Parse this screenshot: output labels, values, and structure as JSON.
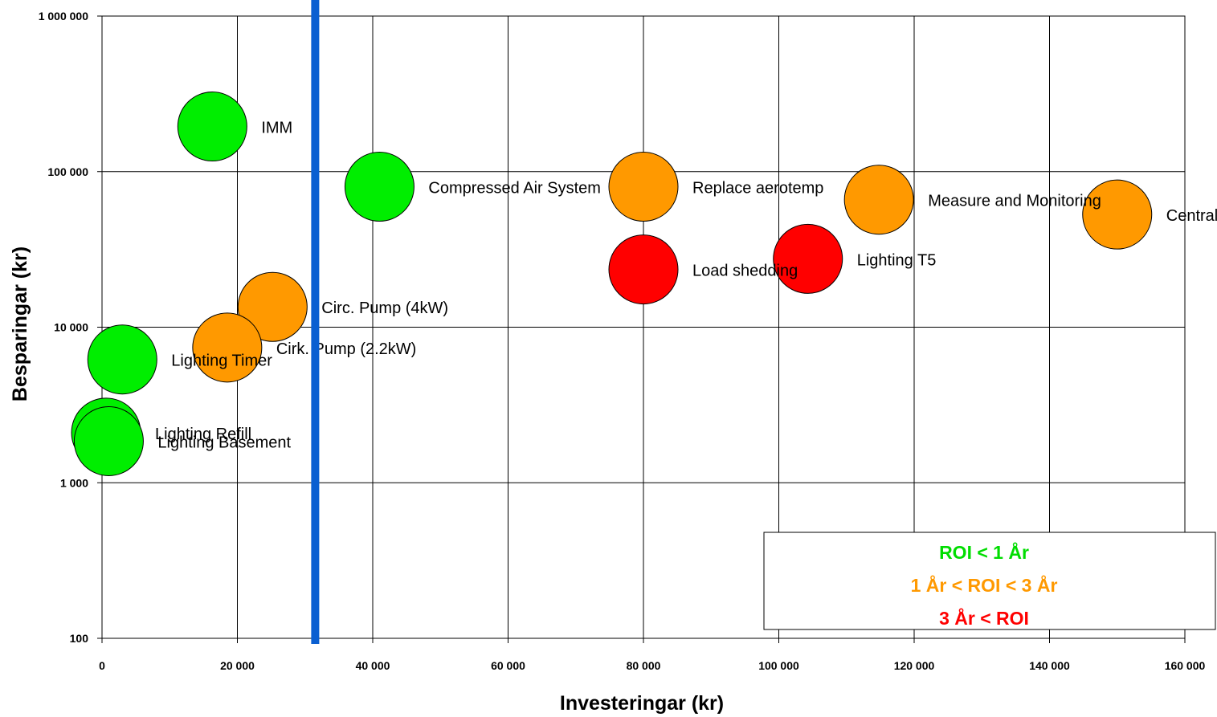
{
  "chart_data": {
    "type": "scatter",
    "subtype": "bubble",
    "xlabel": "Investeringar (kr)",
    "ylabel": "Besparingar (kr)",
    "xlim": [
      0,
      160000
    ],
    "ylim": [
      100,
      1000000
    ],
    "y_scale": "log",
    "grid": true,
    "x_ticks": [
      "0",
      "20 000",
      "40 000",
      "60 000",
      "80 000",
      "100 000",
      "120 000",
      "140 000",
      "160 000"
    ],
    "y_ticks": [
      "100",
      "1 000",
      "10 000",
      "100 000",
      "1 000 000"
    ],
    "reference_line": {
      "axis": "x",
      "value": 31500,
      "color": "#0a5fd1"
    },
    "colors": {
      "green": "#00ee00",
      "orange": "#ff9900",
      "red": "#ff0000"
    },
    "points": [
      {
        "label": "IMM",
        "x": 16300,
        "y": 195000,
        "category": "green"
      },
      {
        "label": "Compressed Air System",
        "x": 41000,
        "y": 80000,
        "category": "green"
      },
      {
        "label": "Replace aerotemp",
        "x": 80000,
        "y": 80000,
        "category": "orange"
      },
      {
        "label": "Measure and Monitoring",
        "x": 114800,
        "y": 66000,
        "category": "orange"
      },
      {
        "label": "Central heating",
        "x": 150000,
        "y": 53000,
        "category": "orange"
      },
      {
        "label": "Load shedding",
        "x": 80000,
        "y": 23500,
        "category": "red"
      },
      {
        "label": "Lighting T5",
        "x": 104300,
        "y": 27500,
        "category": "red"
      },
      {
        "label": "Circ. Pump (4kW)",
        "x": 25200,
        "y": 13500,
        "category": "orange"
      },
      {
        "label": "Cirk. Pump (2.2kW)",
        "x": 18500,
        "y": 7400,
        "category": "orange"
      },
      {
        "label": "Lighting Timer",
        "x": 3000,
        "y": 6200,
        "category": "green"
      },
      {
        "label": "Lighting Refill",
        "x": 600,
        "y": 2100,
        "category": "green"
      },
      {
        "label": "Lighting Basement",
        "x": 1000,
        "y": 1850,
        "category": "green"
      }
    ],
    "legend": {
      "placement": "bottom-right",
      "entries": [
        {
          "text": "ROI < 1 År",
          "color": "#00dd00"
        },
        {
          "text": "1 År < ROI < 3 År",
          "color": "#ff9900"
        },
        {
          "text": "3 År < ROI",
          "color": "#ff0000"
        }
      ]
    }
  }
}
